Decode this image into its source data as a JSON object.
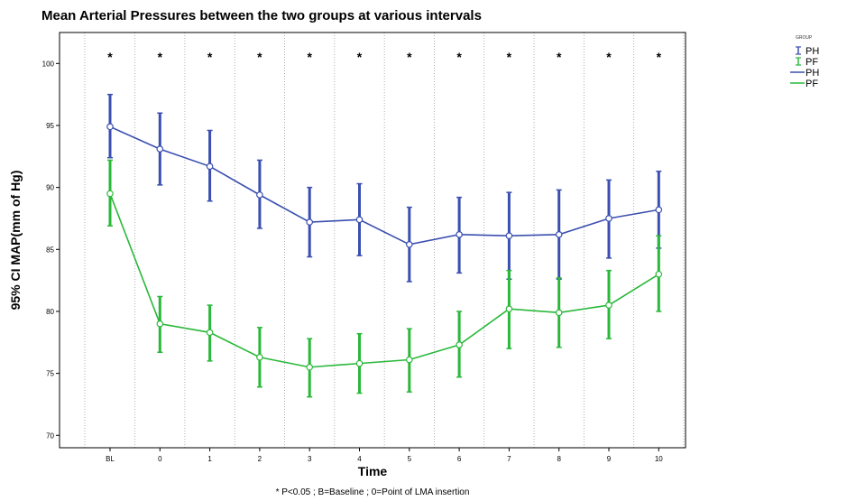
{
  "chart_data": {
    "type": "line",
    "title": "Mean Arterial Pressures between the two groups at various intervals",
    "xlabel": "Time",
    "ylabel": "95% CI MAP(mm of Hg)",
    "footnote": "* P<0.05 ; B=Baseline ; 0=Point of LMA insertion",
    "categories": [
      "BL",
      "0",
      "1",
      "2",
      "3",
      "4",
      "5",
      "6",
      "7",
      "8",
      "9",
      "10"
    ],
    "ylim": [
      69,
      102.5
    ],
    "yticks": [
      70,
      75,
      80,
      85,
      90,
      95,
      100
    ],
    "grid": "vertical dotted",
    "significance_marker": "*",
    "legend": {
      "title": "GROUP",
      "position": "right",
      "error_bar_entries": [
        "PH",
        "PF"
      ],
      "line_entries": [
        "PH",
        "PF"
      ]
    },
    "series": [
      {
        "color": "#3a4fb0",
        "mean": [
          94.9,
          93.1,
          91.7,
          89.4,
          87.2,
          87.4,
          85.4,
          86.2,
          86.1,
          86.2,
          87.5,
          88.2
        ],
        "ci_low": [
          92.4,
          90.2,
          88.9,
          86.7,
          84.4,
          84.5,
          82.4,
          83.1,
          82.6,
          82.6,
          84.3,
          85.1
        ],
        "ci_high": [
          97.5,
          96.0,
          94.6,
          92.2,
          90.0,
          90.3,
          88.4,
          89.2,
          89.6,
          89.8,
          90.6,
          91.3
        ]
      },
      {
        "color": "#2ab83a",
        "mean": [
          89.5,
          79.0,
          78.3,
          76.3,
          75.5,
          75.8,
          76.1,
          77.3,
          80.2,
          79.9,
          80.5,
          83.0
        ],
        "ci_low": [
          86.9,
          76.7,
          76.0,
          73.9,
          73.1,
          73.4,
          73.5,
          74.7,
          77.0,
          77.1,
          77.8,
          80.0
        ],
        "ci_high": [
          92.2,
          81.2,
          80.5,
          78.7,
          77.8,
          78.2,
          78.6,
          80.0,
          83.3,
          82.7,
          83.3,
          86.1
        ]
      }
    ]
  }
}
